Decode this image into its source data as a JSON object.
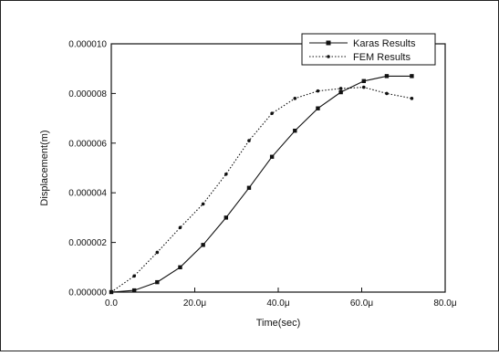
{
  "chart_data": {
    "type": "line",
    "xlabel": "Time(sec)",
    "ylabel": "Displacement(m)",
    "xlim": [
      0,
      8e-05
    ],
    "ylim": [
      0,
      1e-05
    ],
    "x_ticks": [
      {
        "value": 0,
        "label": "0.0"
      },
      {
        "value": 2e-05,
        "label": "20.0μ"
      },
      {
        "value": 4e-05,
        "label": "40.0μ"
      },
      {
        "value": 6e-05,
        "label": "60.0μ"
      },
      {
        "value": 8e-05,
        "label": "80.0μ"
      }
    ],
    "y_ticks": [
      {
        "value": 0,
        "label": "0.000000"
      },
      {
        "value": 2e-06,
        "label": "0.000002"
      },
      {
        "value": 4e-06,
        "label": "0.000004"
      },
      {
        "value": 6e-06,
        "label": "0.000006"
      },
      {
        "value": 8e-06,
        "label": "0.000008"
      },
      {
        "value": 1e-05,
        "label": "0.000010"
      }
    ],
    "legend_position": "top-right",
    "grid": false,
    "series": [
      {
        "name": "Karas Results",
        "style": "solid",
        "marker": "square",
        "color": "#111111",
        "x": [
          0,
          5.5e-06,
          1.1e-05,
          1.65e-05,
          2.2e-05,
          2.75e-05,
          3.3e-05,
          3.85e-05,
          4.4e-05,
          4.95e-05,
          5.5e-05,
          6.05e-05,
          6.6e-05,
          7.2e-05
        ],
        "y": [
          0,
          7e-08,
          4e-07,
          1e-06,
          1.9e-06,
          3e-06,
          4.2e-06,
          5.45e-06,
          6.5e-06,
          7.4e-06,
          8.05e-06,
          8.5e-06,
          8.7e-06,
          8.7e-06
        ]
      },
      {
        "name": "FEM Results",
        "style": "dotted",
        "marker": "dot",
        "color": "#111111",
        "x": [
          0,
          5.5e-06,
          1.1e-05,
          1.65e-05,
          2.2e-05,
          2.75e-05,
          3.3e-05,
          3.85e-05,
          4.4e-05,
          4.95e-05,
          5.5e-05,
          6.05e-05,
          6.6e-05,
          7.2e-05
        ],
        "y": [
          0,
          6.5e-07,
          1.6e-06,
          2.6e-06,
          3.55e-06,
          4.75e-06,
          6.1e-06,
          7.2e-06,
          7.8e-06,
          8.1e-06,
          8.2e-06,
          8.25e-06,
          8e-06,
          7.8e-06
        ]
      }
    ]
  }
}
